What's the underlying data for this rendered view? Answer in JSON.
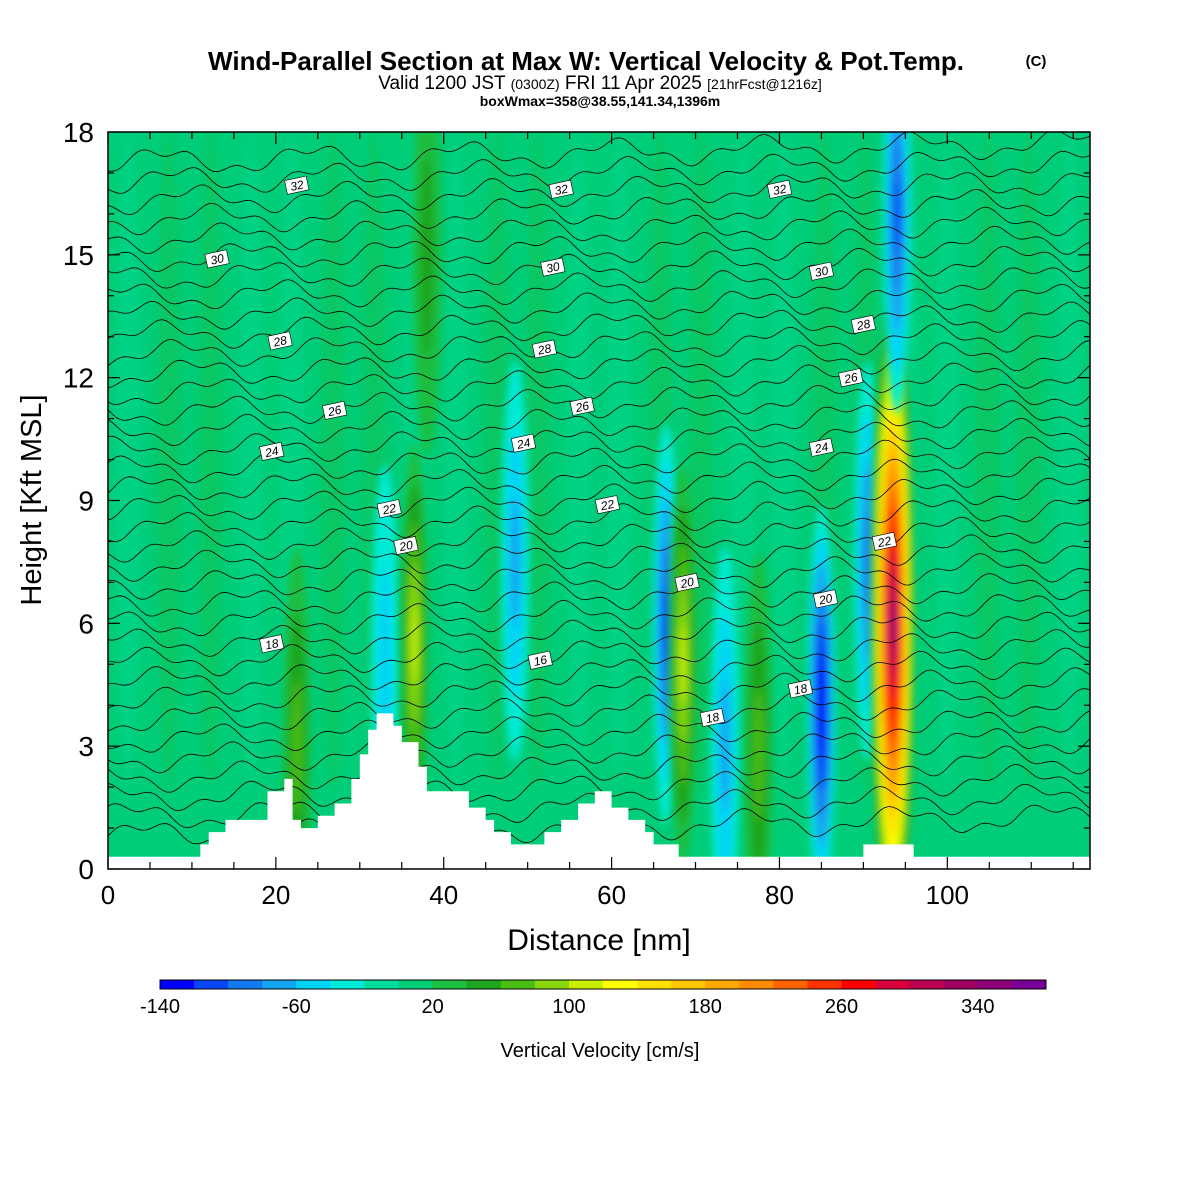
{
  "header": {
    "title": "Wind-Parallel Section at Max W: Vertical Velocity & Pot.Temp.",
    "copyright": "(C)",
    "subtitle_valid": "Valid 1200 JST",
    "subtitle_z": "(0300Z)",
    "subtitle_date": "FRI 11 Apr 2025",
    "subtitle_fcst": "[21hrFcst@1216z]",
    "subtitle_box": "boxWmax=358@38.55,141.34,1396m"
  },
  "chart_data": {
    "type": "heatmap",
    "xlabel": "Distance [nm]",
    "ylabel": "Height [Kft MSL]",
    "xlim": [
      0,
      117
    ],
    "ylim": [
      0,
      18
    ],
    "x_ticks": [
      0,
      20,
      40,
      60,
      80,
      100
    ],
    "y_ticks": [
      0,
      3,
      6,
      9,
      12,
      15,
      18
    ],
    "background_level_cm_s": 0,
    "terrain_kft": [
      [
        0,
        0.3
      ],
      [
        11,
        0.3
      ],
      [
        11,
        0.6
      ],
      [
        12,
        0.6
      ],
      [
        12,
        0.9
      ],
      [
        14,
        0.9
      ],
      [
        14,
        1.2
      ],
      [
        19,
        1.2
      ],
      [
        19,
        1.9
      ],
      [
        21,
        1.9
      ],
      [
        21,
        2.2
      ],
      [
        22,
        2.2
      ],
      [
        22,
        1.2
      ],
      [
        23,
        1.2
      ],
      [
        23,
        1.0
      ],
      [
        25,
        1.0
      ],
      [
        25,
        1.3
      ],
      [
        27,
        1.3
      ],
      [
        27,
        1.6
      ],
      [
        29,
        1.6
      ],
      [
        29,
        2.2
      ],
      [
        30,
        2.2
      ],
      [
        30,
        2.8
      ],
      [
        31,
        2.8
      ],
      [
        31,
        3.4
      ],
      [
        32,
        3.4
      ],
      [
        32,
        3.8
      ],
      [
        34,
        3.8
      ],
      [
        34,
        3.5
      ],
      [
        35,
        3.5
      ],
      [
        35,
        3.1
      ],
      [
        37,
        3.1
      ],
      [
        37,
        2.5
      ],
      [
        38,
        2.5
      ],
      [
        38,
        1.9
      ],
      [
        43,
        1.9
      ],
      [
        43,
        1.5
      ],
      [
        45,
        1.5
      ],
      [
        45,
        1.2
      ],
      [
        46,
        1.2
      ],
      [
        46,
        0.9
      ],
      [
        48,
        0.9
      ],
      [
        48,
        0.6
      ],
      [
        52,
        0.6
      ],
      [
        52,
        0.9
      ],
      [
        54,
        0.9
      ],
      [
        54,
        1.2
      ],
      [
        56,
        1.2
      ],
      [
        56,
        1.6
      ],
      [
        58,
        1.6
      ],
      [
        58,
        1.9
      ],
      [
        60,
        1.9
      ],
      [
        60,
        1.5
      ],
      [
        62,
        1.5
      ],
      [
        62,
        1.2
      ],
      [
        64,
        1.2
      ],
      [
        64,
        0.9
      ],
      [
        65,
        0.9
      ],
      [
        65,
        0.6
      ],
      [
        68,
        0.6
      ],
      [
        68,
        0.3
      ],
      [
        90,
        0.3
      ],
      [
        90,
        0.6
      ],
      [
        96,
        0.6
      ],
      [
        96,
        0.3
      ],
      [
        117,
        0.3
      ]
    ],
    "vertical_velocity_features_cm_s": [
      {
        "x": 22.5,
        "y": 3.0,
        "value": 60
      },
      {
        "x": 33.0,
        "y": 5.0,
        "value": -40
      },
      {
        "x": 36.5,
        "y": 5.5,
        "value": 100
      },
      {
        "x": 38.0,
        "y": 15.0,
        "value": 40
      },
      {
        "x": 48.5,
        "y": 7.5,
        "value": -60
      },
      {
        "x": 66.5,
        "y": 6.0,
        "value": -100
      },
      {
        "x": 68.5,
        "y": 5.0,
        "value": 100
      },
      {
        "x": 73.5,
        "y": 3.0,
        "value": -60
      },
      {
        "x": 77.5,
        "y": 2.8,
        "value": 60
      },
      {
        "x": 85.0,
        "y": 4.0,
        "value": -140
      },
      {
        "x": 90.5,
        "y": 7.5,
        "value": -80
      },
      {
        "x": 93.5,
        "y": 6.0,
        "value": 340
      },
      {
        "x": 94.0,
        "y": 16.0,
        "value": -100
      }
    ],
    "theta_labels": [
      {
        "x": 22.5,
        "y": 16.7,
        "text": "32"
      },
      {
        "x": 54.0,
        "y": 16.6,
        "text": "32"
      },
      {
        "x": 80.0,
        "y": 16.6,
        "text": "32"
      },
      {
        "x": 13.0,
        "y": 14.9,
        "text": "30"
      },
      {
        "x": 53.0,
        "y": 14.7,
        "text": "30"
      },
      {
        "x": 85.0,
        "y": 14.6,
        "text": "30"
      },
      {
        "x": 20.5,
        "y": 12.9,
        "text": "28"
      },
      {
        "x": 52.0,
        "y": 12.7,
        "text": "28"
      },
      {
        "x": 90.0,
        "y": 13.3,
        "text": "28"
      },
      {
        "x": 27.0,
        "y": 11.2,
        "text": "26"
      },
      {
        "x": 56.5,
        "y": 11.3,
        "text": "26"
      },
      {
        "x": 88.5,
        "y": 12.0,
        "text": "26"
      },
      {
        "x": 19.5,
        "y": 10.2,
        "text": "24"
      },
      {
        "x": 49.5,
        "y": 10.4,
        "text": "24"
      },
      {
        "x": 85.0,
        "y": 10.3,
        "text": "24"
      },
      {
        "x": 33.5,
        "y": 8.8,
        "text": "22"
      },
      {
        "x": 59.5,
        "y": 8.9,
        "text": "22"
      },
      {
        "x": 92.5,
        "y": 8.0,
        "text": "22"
      },
      {
        "x": 35.5,
        "y": 7.9,
        "text": "20"
      },
      {
        "x": 69.0,
        "y": 7.0,
        "text": "20"
      },
      {
        "x": 85.5,
        "y": 6.6,
        "text": "20"
      },
      {
        "x": 19.5,
        "y": 5.5,
        "text": "18"
      },
      {
        "x": 72.0,
        "y": 3.7,
        "text": "18"
      },
      {
        "x": 82.5,
        "y": 4.4,
        "text": "18"
      },
      {
        "x": 51.5,
        "y": 5.1,
        "text": "16"
      }
    ],
    "colorbar": {
      "label": "Vertical Velocity [cm/s]",
      "min": -140,
      "step": 20,
      "tick_labels": [
        "-140",
        "-60",
        "20",
        "100",
        "180",
        "260",
        "340"
      ],
      "colors": [
        "#0000ff",
        "#0a46f5",
        "#1478ef",
        "#14a5f0",
        "#00d4f5",
        "#00ebd7",
        "#00dc9b",
        "#00cd78",
        "#1ebe41",
        "#1ea51e",
        "#4bbe14",
        "#87d70a",
        "#c8ef00",
        "#ffff00",
        "#ffe100",
        "#ffc800",
        "#ffaa00",
        "#ff8c00",
        "#ff6400",
        "#ff3200",
        "#ff0000",
        "#d7003c",
        "#be0050",
        "#a00064",
        "#8c0078",
        "#780096"
      ]
    }
  }
}
